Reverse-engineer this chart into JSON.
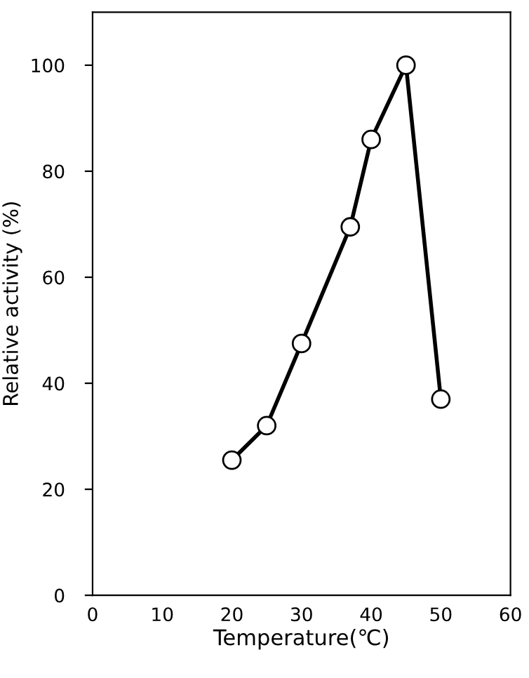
{
  "chart_data": {
    "type": "line",
    "xlabel": "Temperature(℃)",
    "ylabel": "Relative activity (%)",
    "x": [
      20,
      25,
      30,
      37,
      40,
      45,
      50
    ],
    "series": [
      {
        "color": "#000000",
        "values": [
          25.5,
          32,
          47.5,
          69.5,
          86,
          100,
          37
        ]
      }
    ],
    "xlim": [
      0,
      60
    ],
    "xticks": [
      0,
      10,
      20,
      30,
      40,
      50,
      60
    ],
    "ylim": [
      0,
      110
    ],
    "yticks": [
      0,
      20,
      40,
      60,
      80,
      100
    ],
    "marker": "circle",
    "line_style": "solid",
    "grid": false,
    "legend": false
  }
}
